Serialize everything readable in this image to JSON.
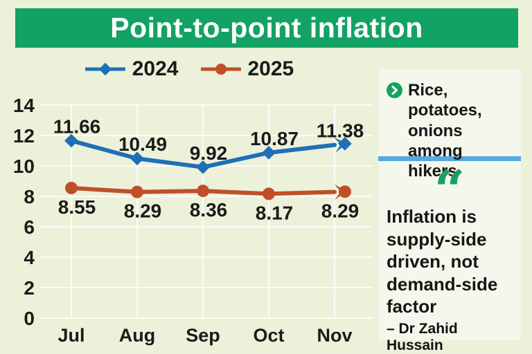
{
  "title": "Point-to-point inflation",
  "colors": {
    "banner_green": "#12a263",
    "background": "#ecf1da",
    "panel": "#f4f7ec",
    "divider_blue": "#58a8de",
    "series_2024_blue": "#1d70b7",
    "series_2025_red": "#c04f28",
    "icon_green": "#17a35f",
    "gridline": "#ffffff",
    "text": "#1b1b1b"
  },
  "chart_data": {
    "type": "line",
    "categories": [
      "Jul",
      "Aug",
      "Sep",
      "Oct",
      "Nov"
    ],
    "series": [
      {
        "name": "2024",
        "color": "#1d70b7",
        "marker": "diamond",
        "values": [
          11.66,
          10.49,
          9.92,
          10.87,
          11.38
        ]
      },
      {
        "name": "2025",
        "color": "#c04f28",
        "marker": "circle",
        "values": [
          8.55,
          8.29,
          8.36,
          8.17,
          8.29
        ]
      }
    ],
    "title": "Point-to-point inflation",
    "xlabel": "",
    "ylabel": "",
    "ylim": [
      0,
      14
    ],
    "ytick_step": 2,
    "yticks": [
      0,
      2,
      4,
      6,
      8,
      10,
      12,
      14
    ],
    "grid": true,
    "legend_position": "top",
    "end_arrows": true
  },
  "sidebar": {
    "headline": "Rice, potatoes, onions among hikers",
    "quote_mark": "“",
    "quote": "Inflation is supply-side driven, not demand-side factor",
    "attribution": "– Dr Zahid Hussain"
  }
}
